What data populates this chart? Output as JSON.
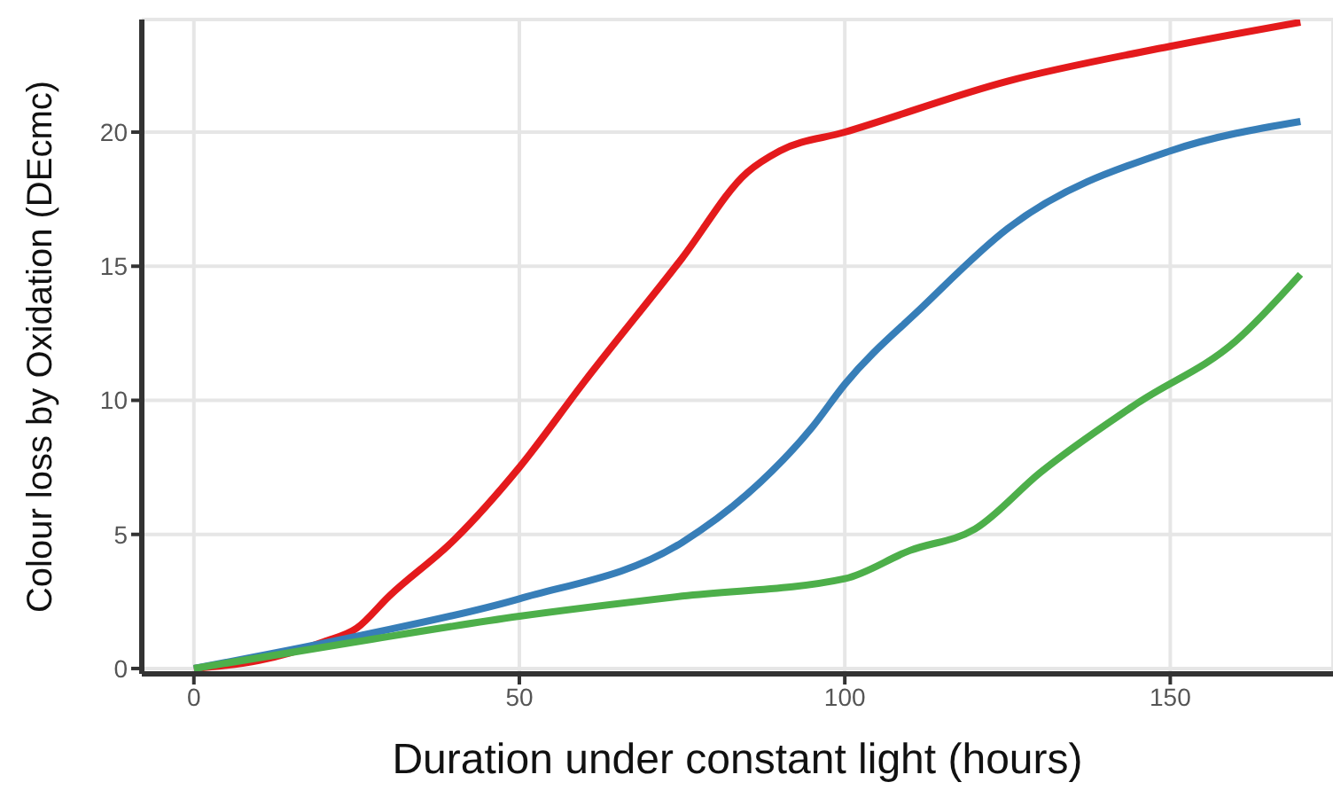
{
  "chart_data": {
    "type": "line",
    "xlabel": "Duration under constant light (hours)",
    "ylabel": "Colour loss by Oxidation (DEcmc)",
    "xlim": [
      -8,
      175
    ],
    "ylim": [
      -0.2,
      24.2
    ],
    "xticks": [
      0,
      50,
      100,
      150
    ],
    "yticks": [
      0,
      5,
      10,
      15,
      20
    ],
    "grid": true,
    "legend": false,
    "marker": "none",
    "line_style": "solid",
    "series": [
      {
        "color": "#e41a1c",
        "x": [
          0,
          10,
          20,
          25,
          30,
          40,
          50,
          60,
          75,
          85,
          90,
          100,
          125,
          150,
          170
        ],
        "values": [
          0,
          0.3,
          1,
          1.5,
          2.7,
          4.8,
          7.5,
          10.7,
          15.3,
          18.5,
          19.3,
          20,
          21.9,
          23.2,
          24.1
        ]
      },
      {
        "color": "#377eb8",
        "x": [
          0,
          25,
          50,
          75,
          85,
          95,
          100,
          112,
          125,
          150,
          170
        ],
        "values": [
          0,
          1.2,
          2.6,
          4.7,
          6.5,
          9,
          10.6,
          13.5,
          16.4,
          19.3,
          20.4
        ]
      },
      {
        "color": "#4daf4a",
        "x": [
          0,
          25,
          50,
          75,
          100,
          110,
          120,
          130,
          145,
          160,
          170
        ],
        "values": [
          0,
          1,
          1.95,
          2.7,
          3.35,
          4.4,
          5.2,
          7.3,
          9.9,
          12.2,
          14.7
        ]
      }
    ]
  }
}
